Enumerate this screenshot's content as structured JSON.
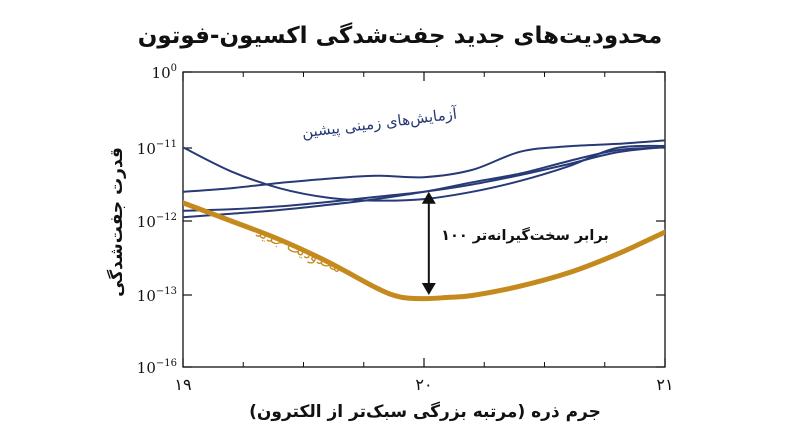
{
  "chart_data": {
    "type": "line",
    "title": "محدودیت‌های جدید جفت‌شدگی اکسیون-فوتون",
    "xlabel": "جرم ذره (مرتبه بزرگی سبک‌تر از الکترون)",
    "ylabel": "قدرت جفت‌شدگی",
    "xlim": [
      19,
      21
    ],
    "ylim": [
      -16,
      0
    ],
    "yscale": "log",
    "xticks": [
      {
        "value": 19,
        "label": "۱۹"
      },
      {
        "value": 20,
        "label": "۲۰"
      },
      {
        "value": 21,
        "label": "۲۱"
      }
    ],
    "yticks": [
      {
        "value": 0,
        "base": "10",
        "exp": "0"
      },
      {
        "value": -11,
        "base": "10",
        "exp": "−11"
      },
      {
        "value": -12,
        "base": "10",
        "exp": "−12"
      },
      {
        "value": -13,
        "base": "10",
        "exp": "−13"
      },
      {
        "value": -16,
        "base": "10",
        "exp": "−16"
      }
    ],
    "series": [
      {
        "color": "#273a76",
        "x": [
          19.0,
          19.2,
          19.4,
          19.6,
          19.8,
          20.0,
          20.2,
          20.4,
          20.6,
          20.8,
          21.0
        ],
        "y": [
          -11.6,
          -11.55,
          -11.48,
          -11.42,
          -11.38,
          -11.4,
          -11.3,
          -11.05,
          -10.75,
          -10.4,
          -9.9
        ]
      },
      {
        "color": "#273a76",
        "x": [
          19.0,
          19.2,
          19.4,
          19.6,
          19.8,
          20.0,
          20.2,
          20.4,
          20.6,
          20.8,
          21.0
        ],
        "y": [
          -11.86,
          -11.84,
          -11.8,
          -11.74,
          -11.67,
          -11.6,
          -11.5,
          -11.37,
          -11.22,
          -11.06,
          -10.85
        ]
      },
      {
        "color": "#273a76",
        "x": [
          19.0,
          19.2,
          19.4,
          19.6,
          19.8,
          20.0,
          20.2,
          20.4,
          20.6,
          20.8,
          21.0
        ],
        "y": [
          -11.95,
          -11.9,
          -11.85,
          -11.78,
          -11.7,
          -11.6,
          -11.47,
          -11.35,
          -11.18,
          -11.03,
          -10.88
        ]
      },
      {
        "color": "#273a76",
        "x": [
          19.0,
          19.2,
          19.4,
          19.6,
          19.8,
          20.0,
          20.2,
          20.4,
          20.6,
          20.8,
          21.0
        ],
        "y": [
          -10.9,
          -11.32,
          -11.55,
          -11.68,
          -11.72,
          -11.7,
          -11.6,
          -11.45,
          -11.25,
          -11.0,
          -10.7
        ]
      },
      {
        "color": "#c58a1d",
        "x": [
          19.0,
          19.2,
          19.4,
          19.6,
          19.8,
          19.9,
          20.0,
          20.1,
          20.2,
          20.4,
          20.6,
          20.8,
          21.0
        ],
        "y": [
          -11.75,
          -12.0,
          -12.25,
          -12.55,
          -12.9,
          -13.08,
          -13.15,
          -13.1,
          -13.02,
          -12.88,
          -12.7,
          -12.45,
          -12.15
        ]
      }
    ],
    "annotations": [
      {
        "text": "آزمایش‌های زمینی پیشین",
        "color": "#273a76"
      },
      {
        "text": "محدودیت جدید",
        "color": "#c58a1d"
      },
      {
        "text": "۱۰۰ برابر سخت‌گیرانه‌تر",
        "color": "#111111"
      }
    ],
    "arrow": {
      "x": 20.02,
      "y_top": -11.6,
      "y_bottom": -13.0
    },
    "grid": false,
    "legend": "none"
  }
}
